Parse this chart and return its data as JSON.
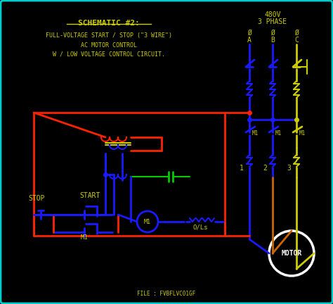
{
  "bg_color": "#000000",
  "border_color": "#00cccc",
  "title_color": "#cccc00",
  "wire_blue": "#1a1aff",
  "wire_red": "#ff2200",
  "wire_orange": "#cc6600",
  "wire_yellow": "#cccc00",
  "wire_green": "#00cc00",
  "motor_color": "#ffffff",
  "title_lines": [
    "SCHEMATIC #2:",
    "FULL-VOLTAGE START / STOP (\"3 WIRE\")",
    "AC MOTOR CONTROL",
    "W / LOW VOLTAGE CONTROL CIRCUIT."
  ],
  "power_label": "480V\n3 PHASE",
  "phase_labels": [
    [
      "O",
      "A"
    ],
    [
      "O",
      "B"
    ],
    [
      "O",
      "C"
    ]
  ],
  "m1_labels": [
    "M1",
    "M1",
    "M1"
  ],
  "bottom_labels": [
    "1",
    "2",
    "3"
  ],
  "stop_label": "STOP",
  "start_label": "START",
  "m1_bottom": "M1",
  "m1_mid": "M1",
  "ols_label": "O/Ls",
  "motor_label": "MOTOR",
  "file_label": "FILE : FVBFLVC01GF",
  "figsize": [
    4.74,
    4.32
  ],
  "dpi": 100
}
